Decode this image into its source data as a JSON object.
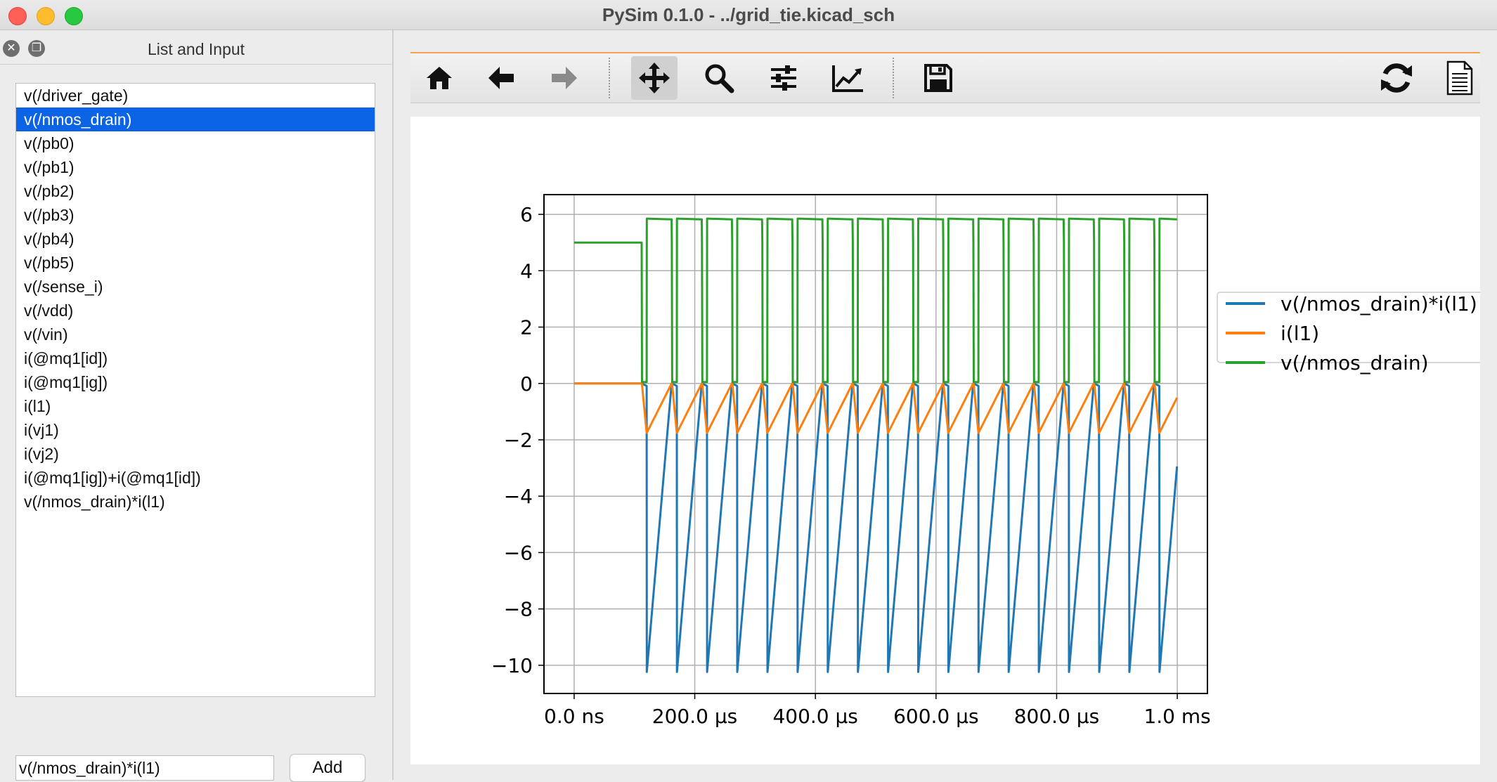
{
  "window": {
    "title": "PySim 0.1.0 - ../grid_tie.kicad_sch"
  },
  "dock": {
    "title": "List and Input",
    "items": [
      "v(/driver_gate)",
      "v(/nmos_drain)",
      "v(/pb0)",
      "v(/pb1)",
      "v(/pb2)",
      "v(/pb3)",
      "v(/pb4)",
      "v(/pb5)",
      "v(/sense_i)",
      "v(/vdd)",
      "v(/vin)",
      "i(@mq1[id])",
      "i(@mq1[ig])",
      "i(l1)",
      "i(vj1)",
      "i(vj2)",
      "i(@mq1[ig])+i(@mq1[id])",
      "v(/nmos_drain)*i(l1)"
    ],
    "selected_index": 1,
    "input_value": "v(/nmos_drain)*i(l1)",
    "add_label": "Add"
  },
  "toolbar": {
    "tools": [
      "home-icon",
      "back-arrow-icon",
      "forward-arrow-icon",
      "pan-icon",
      "zoom-icon",
      "configure-subplots-icon",
      "edit-axis-icon",
      "save-icon",
      "refresh-icon",
      "document-icon"
    ],
    "active_tool": "pan-icon"
  },
  "colors": {
    "selection": "#0b63e5",
    "series_power": "#1f77b4",
    "series_current": "#ff7f0e",
    "series_voltage": "#2ca02c",
    "toolbar_accent": "#f7a250"
  },
  "chart_data": {
    "type": "line",
    "x_unit": "s",
    "xlim": [
      -5e-05,
      0.00105
    ],
    "ylim": [
      -11.0,
      6.7
    ],
    "xticks": [
      0,
      0.0002,
      0.0004,
      0.0006,
      0.0008,
      0.001
    ],
    "xtick_labels": [
      "0.0 ns",
      "200.0 µs",
      "400.0 µs",
      "600.0 µs",
      "800.0 µs",
      "1.0 ms"
    ],
    "yticks": [
      6,
      4,
      2,
      0,
      -2,
      -4,
      -6,
      -8,
      -10
    ],
    "ytick_labels": [
      "6",
      "4",
      "2",
      "0",
      "−2",
      "−4",
      "−6",
      "−8",
      "−10"
    ],
    "grid": true,
    "legend_position": "right-outside",
    "waveform": {
      "start_time": 0.000112,
      "period": 5e-05,
      "on_time": 8.5e-06,
      "end_time": 0.001,
      "current_peak": -1.75,
      "current_end": -0.35,
      "voltage_initial": 5.0,
      "voltage_high": 5.85,
      "voltage_low": 0.05,
      "power_min": -10.3,
      "power_end": -2.05
    },
    "series": [
      {
        "name": "v(/nmos_drain)*i(l1)",
        "color": "#1f77b4",
        "initial_value": 0
      },
      {
        "name": "i(l1)",
        "color": "#ff7f0e",
        "initial_value": 0
      },
      {
        "name": "v(/nmos_drain)",
        "color": "#2ca02c",
        "initial_value": 5.0
      }
    ]
  }
}
